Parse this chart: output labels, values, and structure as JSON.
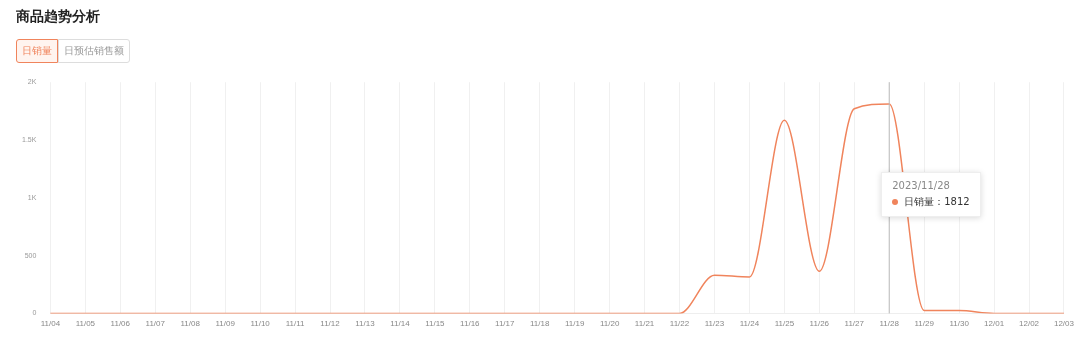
{
  "chart_data": {
    "type": "line",
    "title": "商品趋势分析",
    "categories": [
      "11/04",
      "11/05",
      "11/06",
      "11/07",
      "11/08",
      "11/09",
      "11/10",
      "11/11",
      "11/12",
      "11/13",
      "11/14",
      "11/15",
      "11/16",
      "11/17",
      "11/18",
      "11/19",
      "11/20",
      "11/21",
      "11/22",
      "11/23",
      "11/24",
      "11/25",
      "11/26",
      "11/27",
      "11/28",
      "11/29",
      "11/30",
      "12/01",
      "12/02",
      "12/03"
    ],
    "series": [
      {
        "color": "#f0845c",
        "values": [
          0,
          0,
          0,
          0,
          0,
          0,
          0,
          0,
          0,
          0,
          0,
          0,
          0,
          0,
          0,
          0,
          0,
          0,
          0,
          330,
          315,
          1670,
          365,
          1770,
          1812,
          25,
          25,
          0,
          0,
          0
        ]
      }
    ],
    "ref_lines": [
      {
        "axis": "x",
        "value": "11/28",
        "color": "#bbbbbb"
      }
    ],
    "ylim": [
      0,
      2000
    ],
    "yticks": [
      0,
      500,
      {
        "value": 1000,
        "label": "1K"
      },
      {
        "value": 1500,
        "label": "1.5K"
      },
      {
        "value": 2000,
        "label": "2K"
      }
    ],
    "grid": "x",
    "legend": false,
    "marker": "none",
    "line_style": "solid",
    "annotations": [
      "日销量",
      "日预估销售额",
      "2023/11/28",
      "日销量：1812"
    ]
  }
}
